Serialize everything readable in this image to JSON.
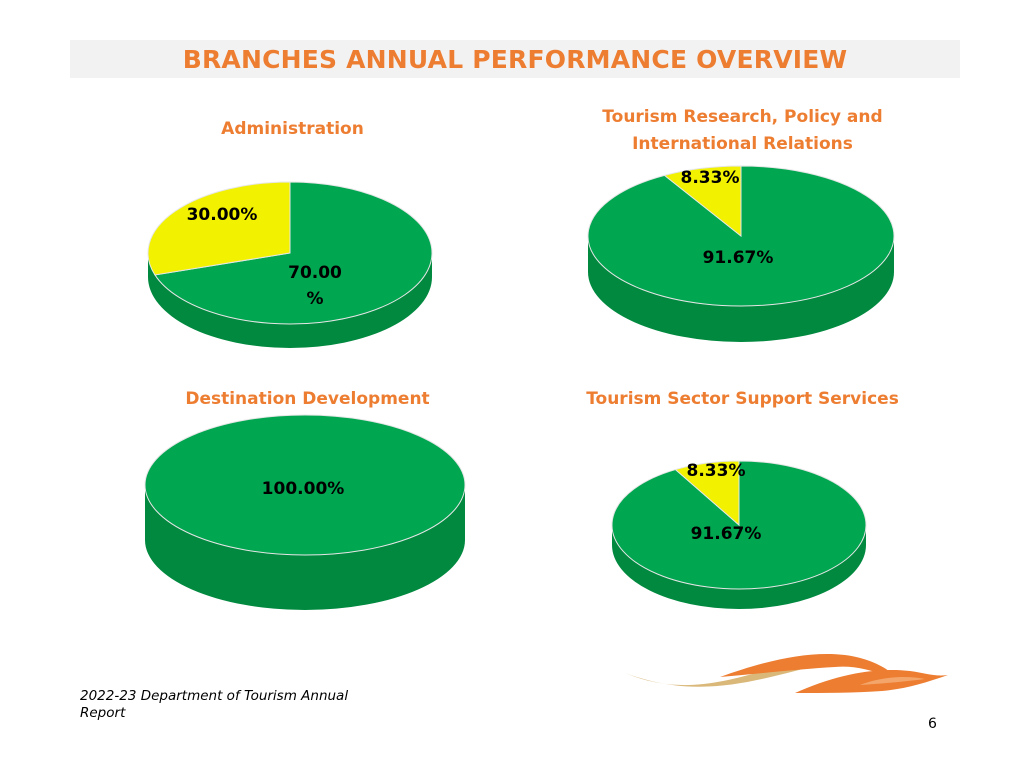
{
  "slide": {
    "title": "BRANCHES ANNUAL PERFORMANCE OVERVIEW",
    "footer": "2022-23 Department of Tourism Annual Report",
    "page_number": "6"
  },
  "colors": {
    "accent": "#ED7D31",
    "green": "#00A650",
    "green_dark": "#00893F",
    "yellow": "#F2F200"
  },
  "chart_data": [
    {
      "type": "pie",
      "title": "Administration",
      "slices": [
        {
          "value": 70.0,
          "label": "70.00\n%",
          "color": "#00A650"
        },
        {
          "value": 30.0,
          "label": "30.00%",
          "color": "#F2F200"
        }
      ]
    },
    {
      "type": "pie",
      "title": "Tourism Research, Policy and\nInternational Relations",
      "slices": [
        {
          "value": 91.67,
          "label": "91.67%",
          "color": "#00A650"
        },
        {
          "value": 8.33,
          "label": "8.33%",
          "color": "#F2F200"
        }
      ]
    },
    {
      "type": "pie",
      "title": "Destination Development",
      "slices": [
        {
          "value": 100.0,
          "label": "100.00%",
          "color": "#00A650"
        }
      ]
    },
    {
      "type": "pie",
      "title": "Tourism Sector Support Services",
      "slices": [
        {
          "value": 91.67,
          "label": "91.67%",
          "color": "#00A650"
        },
        {
          "value": 8.33,
          "label": "8.33%",
          "color": "#F2F200"
        }
      ]
    }
  ]
}
